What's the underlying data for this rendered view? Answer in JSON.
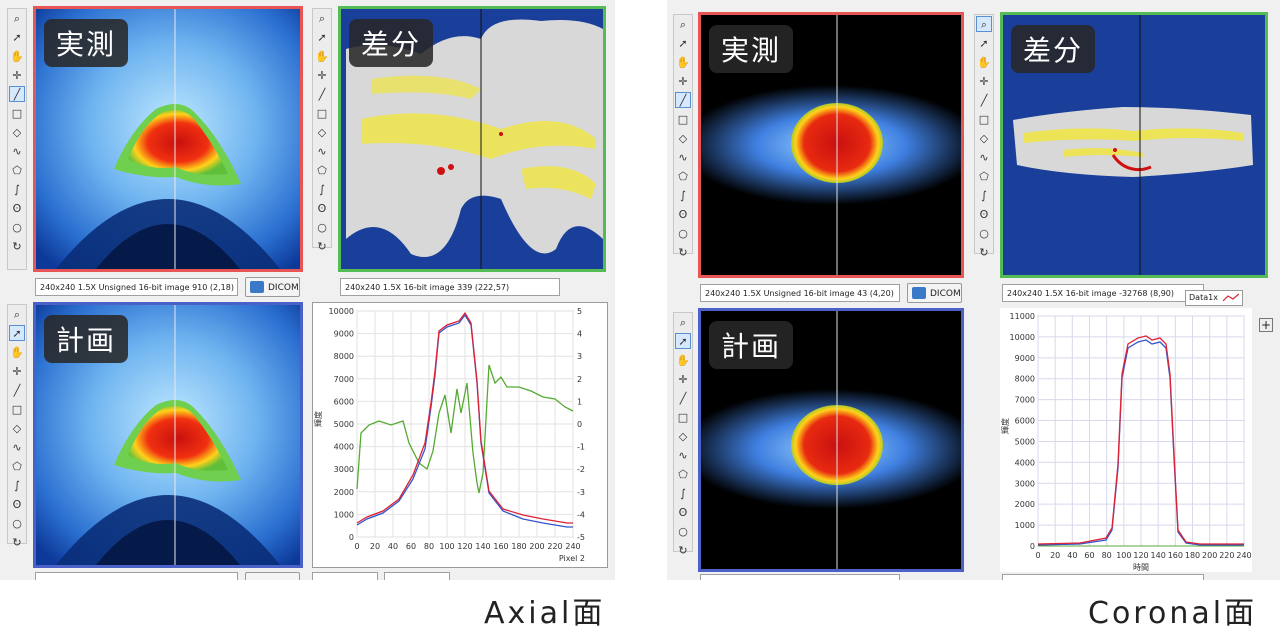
{
  "axial": {
    "label_measured": "実測",
    "label_diff": "差分",
    "label_plan": "計画",
    "status_measured": "240x240 1.5X Unsigned 16-bit image 910   (2,18)",
    "status_diff": "240x240 1.5X 16-bit image 339   (222,57)",
    "dicom_label": "DICOM",
    "caption": "Axial面",
    "chart": {
      "yticks_left": [
        "10000",
        "9000",
        "8000",
        "7000",
        "6000",
        "5000",
        "4000",
        "3000",
        "2000",
        "1000",
        "0"
      ],
      "yticks_right": [
        "5",
        "4",
        "3",
        "2",
        "1",
        "0",
        "-1",
        "-2",
        "-3",
        "-4",
        "-5"
      ],
      "xticks": [
        "0",
        "20",
        "40",
        "60",
        "80",
        "100",
        "120",
        "140",
        "160",
        "180",
        "200",
        "220",
        "240"
      ],
      "xlabel": "Pixel 2",
      "ylabel": "輝度"
    }
  },
  "coronal": {
    "label_measured": "実測",
    "label_diff": "差分",
    "label_plan": "計画",
    "status_measured": "240x240 1.5X Unsigned 16-bit image 43   (4,20)",
    "status_diff": "240x240 1.5X 16-bit image -32768   (8,90)",
    "dicom_label": "DICOM",
    "legend": "Data1x",
    "plus": "+",
    "caption": "Coronal面",
    "chart": {
      "yticks": [
        "11000",
        "10000",
        "9000",
        "8000",
        "7000",
        "6000",
        "5000",
        "4000",
        "3000",
        "2000",
        "1000",
        "0"
      ],
      "xticks": [
        "0",
        "20",
        "40",
        "60",
        "80",
        "100",
        "120",
        "140",
        "160",
        "180",
        "200",
        "220",
        "240"
      ],
      "xlabel": "時間",
      "ylabel": "輝度"
    }
  },
  "toolbar_icons": [
    "zoom-icon",
    "arrow-icon",
    "hand-icon",
    "crosshair-icon",
    "line-icon",
    "rect-icon",
    "diamond-icon",
    "freehand-icon",
    "polygon-icon",
    "curve-icon",
    "lasso-icon",
    "oval-icon",
    "rotate-icon"
  ],
  "colors": {
    "frame_red": "#e85555",
    "frame_green": "#55bb55",
    "frame_blue": "#4a62c8",
    "diff_bg": "#1a3f9a",
    "curve_red": "#dd2233",
    "curve_blue": "#3355cc",
    "curve_green": "#55aa33"
  }
}
